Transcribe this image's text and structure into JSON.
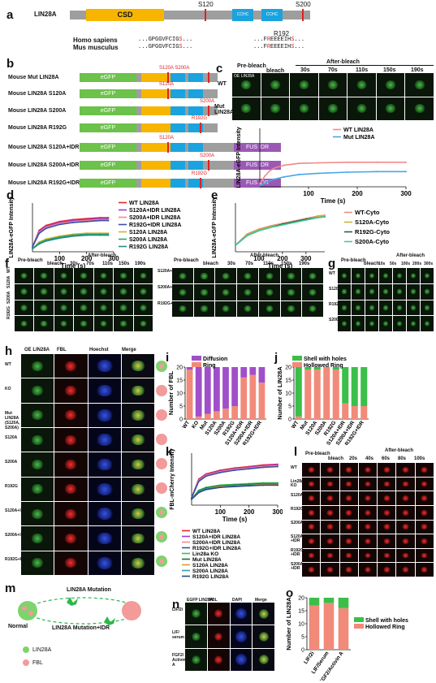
{
  "panels": {
    "a": "a",
    "b": "b",
    "c": "c",
    "d": "d",
    "e": "e",
    "f": "f",
    "g": "g",
    "h": "h",
    "i": "i",
    "j": "j",
    "k": "k",
    "l": "l",
    "m": "m",
    "n": "n",
    "o": "o"
  },
  "a": {
    "protein": "LIN28A",
    "csd": "CSD",
    "cchc": "CCHC",
    "s120": "S120",
    "s200": "S200",
    "r192": "R192",
    "homo": "Homo sapiens",
    "mus": "Mus musculus",
    "seq1_pre": "...GPGGVFCIG",
    "seq1_s": "S",
    "seq1_post": "...",
    "seq2_pre": "...GPGGVFCIG",
    "seq2_s": "S",
    "seq2_post": "...",
    "seq3_pre": "...F",
    "seq3_r": "R",
    "seq3_post": "EEEEIH",
    "seq3_s": "S",
    "seq3_end": "...",
    "seq4_pre": "...F",
    "seq4_r": "R",
    "seq4_post": "EEEEIH",
    "seq4_s": "S",
    "seq4_end": "..."
  },
  "b": {
    "egfp": "eGFP",
    "fusidr": "FUS IDR",
    "rows": [
      {
        "name": "Mouse Mut LIN28A",
        "mark": "S120A S200A"
      },
      {
        "name": "Mouse LIN28A S120A",
        "mark": "S120A"
      },
      {
        "name": "Mouse LIN28A S200A",
        "mark": "S200A"
      },
      {
        "name": "Mouse LIN28A R192G",
        "mark": "R192G"
      },
      {
        "name": "Mouse LIN28A S120A+IDR",
        "mark": "S120A"
      },
      {
        "name": "Mouse LIN28A S200A+IDR",
        "mark": "S200A"
      },
      {
        "name": "Mouse LIN28A R192G+IDR",
        "mark": "R192G"
      }
    ]
  },
  "c": {
    "prebleach": "Pre-bleach",
    "bleach": "bleach",
    "afterbleach": "After-bleach",
    "times": [
      "30s",
      "70s",
      "110s",
      "150s",
      "190s"
    ],
    "row1": "WT",
    "row2": "Mut LIN28A",
    "oe": "OE LIN28A",
    "ylabel": "LIN28A-eGFP Intensity",
    "xlabel": "Time (s)",
    "legend": [
      "WT LIN28A",
      "Mut LIN28A"
    ]
  },
  "d": {
    "ylabel": "LIN28A-eGFP Intensity",
    "xlabel": "Time (s)",
    "legend": [
      "WT LIN28A",
      "S120A+IDR LIN28A",
      "S200A+IDR LIN28A",
      "R192G+IDR LIN28A",
      "S120A LIN28A",
      "S200A LIN28A",
      "R192G LIN28A"
    ]
  },
  "e": {
    "ylabel": "LIN28A-eGFP Intensity",
    "xlabel": "Time (s)",
    "legend": [
      "WT-Cyto",
      "S120A-Cyto",
      "R192G-Cyto",
      "S200A-Cyto"
    ]
  },
  "f": {
    "prebleach": "Pre-bleach",
    "bleach": "bleach",
    "afterbleach": "After-bleach",
    "times": [
      "30s",
      "70s",
      "110s",
      "150s",
      "190s"
    ],
    "rowsL": [
      "WT",
      "S120A",
      "S200A",
      "R192G"
    ],
    "rowsR": [
      "S120A+IDR",
      "S200A+IDR",
      "R192G+IDR"
    ]
  },
  "g": {
    "prebleach": "Pre-bleach",
    "bleach": "bleach",
    "afterbleach": "After-bleach",
    "times": [
      "10s",
      "50s",
      "100s",
      "200s",
      "300s"
    ],
    "rows": [
      "WT",
      "S120A",
      "R192G",
      "S200A"
    ]
  },
  "h": {
    "cols": [
      "OE LIN28A",
      "FBL",
      "Hoechst",
      "Merge"
    ],
    "rows": [
      "WT",
      "KO",
      "Mut LIN28A (S120A, S200A)",
      "S120A",
      "S200A",
      "R192G",
      "S120A+IDR",
      "S200A+IDR",
      "R192G+IDR"
    ]
  },
  "i": {
    "ylabel": "Number of FBL",
    "legend": [
      "Diffusion",
      "Ring"
    ]
  },
  "j": {
    "ylabel": "Number of LIN28A",
    "legend": [
      "Shell with holes",
      "Hollowed Ring"
    ]
  },
  "k": {
    "ylabel": "FBL-mCherry Intensity",
    "xlabel": "Time (s)",
    "legend": [
      "WT LIN28A",
      "S120A+IDR LIN28A",
      "S200A+IDR LIN28A",
      "R192G+IDR LIN28A",
      "Lin28a KO",
      "Mut LIN28A",
      "S120A LIN28A",
      "S200A LIN28A",
      "R192G LIN28A"
    ]
  },
  "l": {
    "prebleach": "Pre-bleach",
    "bleach": "bleach",
    "afterbleach": "After-bleach",
    "times": [
      "20s",
      "40s",
      "60s",
      "80s",
      "100s"
    ],
    "rows": [
      "WT",
      "Lin28a KO",
      "S120A",
      "R192G",
      "S200A",
      "S120A +IDR",
      "R192G +IDR",
      "S200A +IDR"
    ]
  },
  "m": {
    "top": "LIN28A Mutation",
    "bottom": "LIN28A Mutation+IDR",
    "normal": "Normal",
    "leg1": "LIN28A",
    "leg2": "FBL"
  },
  "n": {
    "cols": [
      "EGFP LIN28A",
      "FBL",
      "DAPI",
      "Merge"
    ],
    "rows": [
      "LIF/2i",
      "LIF/ serum",
      "FGF2/ Activin A"
    ]
  },
  "o": {
    "ylabel": "Number of LIN28A",
    "legend": [
      "Shell with holes",
      "Hollowed Ring"
    ]
  },
  "chart_data": [
    {
      "type": "line",
      "panel": "c",
      "xlabel": "Time (s)",
      "ylabel": "LIN28A-eGFP Intensity",
      "xticks": [
        100,
        200,
        300
      ],
      "xlim": [
        0,
        300
      ],
      "ylim": [
        0,
        1.0
      ],
      "series": [
        {
          "name": "WT LIN28A",
          "color": "#f28a8a",
          "x": [
            0,
            10,
            20,
            30,
            50,
            80,
            120,
            180,
            240,
            300
          ],
          "y": [
            0.05,
            0.18,
            0.27,
            0.32,
            0.37,
            0.4,
            0.41,
            0.42,
            0.42,
            0.42
          ]
        },
        {
          "name": "Mut LIN28A",
          "color": "#4aa6e8",
          "x": [
            0,
            10,
            20,
            30,
            50,
            80,
            120,
            180,
            240,
            300
          ],
          "y": [
            0.02,
            0.06,
            0.1,
            0.13,
            0.17,
            0.21,
            0.23,
            0.25,
            0.26,
            0.26
          ]
        }
      ]
    },
    {
      "type": "line",
      "panel": "d",
      "xlabel": "Time (s)",
      "ylabel": "LIN28A-eGFP Intensity",
      "xticks": [
        100,
        200,
        300
      ],
      "xlim": [
        0,
        300
      ],
      "ylim": [
        0,
        0.5
      ],
      "series": [
        {
          "name": "WT LIN28A",
          "color": "#e8232a",
          "x": [
            0,
            25,
            50,
            100,
            150,
            200,
            250,
            280
          ],
          "y": [
            0.05,
            0.22,
            0.27,
            0.31,
            0.33,
            0.34,
            0.35,
            0.35
          ]
        },
        {
          "name": "S120A+IDR LIN28A",
          "color": "#9b3bd6",
          "x": [
            0,
            25,
            50,
            100,
            150,
            200,
            250,
            280
          ],
          "y": [
            0.05,
            0.21,
            0.26,
            0.3,
            0.32,
            0.33,
            0.34,
            0.34
          ]
        },
        {
          "name": "S200A+IDR LIN28A",
          "color": "#f28a8a",
          "x": [
            0,
            25,
            50,
            100,
            150,
            200,
            250,
            280
          ],
          "y": [
            0.05,
            0.2,
            0.25,
            0.29,
            0.31,
            0.32,
            0.33,
            0.33
          ]
        },
        {
          "name": "R192G+IDR LIN28A",
          "color": "#3a4fa8",
          "x": [
            0,
            25,
            50,
            100,
            150,
            200,
            250,
            280
          ],
          "y": [
            0.05,
            0.19,
            0.24,
            0.28,
            0.3,
            0.31,
            0.32,
            0.32
          ]
        },
        {
          "name": "S120A LIN28A",
          "color": "#c9b52a",
          "x": [
            0,
            25,
            50,
            100,
            150,
            200,
            250,
            280
          ],
          "y": [
            0.03,
            0.1,
            0.13,
            0.16,
            0.18,
            0.19,
            0.19,
            0.19
          ]
        },
        {
          "name": "S200A LIN28A",
          "color": "#2aa36b",
          "x": [
            0,
            25,
            50,
            100,
            150,
            200,
            250,
            280
          ],
          "y": [
            0.03,
            0.09,
            0.12,
            0.15,
            0.17,
            0.18,
            0.18,
            0.18
          ]
        },
        {
          "name": "R192G LIN28A",
          "color": "#2a8a8a",
          "x": [
            0,
            25,
            50,
            100,
            150,
            200,
            250,
            280
          ],
          "y": [
            0.03,
            0.08,
            0.11,
            0.14,
            0.16,
            0.17,
            0.17,
            0.17
          ]
        }
      ]
    },
    {
      "type": "line",
      "panel": "e",
      "xlabel": "Time (s)",
      "ylabel": "LIN28A-eGFP Intensity",
      "xticks": [
        100,
        200,
        300
      ],
      "xlim": [
        0,
        380
      ],
      "ylim": [
        0,
        0.6
      ],
      "series": [
        {
          "name": "WT-Cyto",
          "color": "#f28a8a",
          "x": [
            0,
            50,
            100,
            150,
            200,
            250,
            300,
            350,
            380
          ],
          "y": [
            0.08,
            0.22,
            0.28,
            0.32,
            0.35,
            0.38,
            0.41,
            0.44,
            0.45
          ]
        },
        {
          "name": "S120A-Cyto",
          "color": "#c9b52a",
          "x": [
            0,
            50,
            100,
            150,
            200,
            250,
            300,
            350,
            380
          ],
          "y": [
            0.08,
            0.21,
            0.27,
            0.31,
            0.34,
            0.37,
            0.4,
            0.43,
            0.44
          ]
        },
        {
          "name": "R192G-Cyto",
          "color": "#1f6b3a",
          "x": [
            0,
            50,
            100,
            150,
            200,
            250,
            300,
            350,
            380
          ],
          "y": [
            0.08,
            0.2,
            0.26,
            0.3,
            0.34,
            0.37,
            0.4,
            0.42,
            0.43
          ]
        },
        {
          "name": "S200A-Cyto",
          "color": "#3ec9a0",
          "x": [
            0,
            50,
            100,
            150,
            200,
            250,
            300,
            350,
            380
          ],
          "y": [
            0.08,
            0.2,
            0.26,
            0.3,
            0.33,
            0.36,
            0.39,
            0.42,
            0.43
          ]
        }
      ]
    },
    {
      "type": "bar",
      "panel": "i",
      "stacked": true,
      "ylabel": "Number of FBL",
      "ylim": [
        0,
        20
      ],
      "yticks": [
        0,
        5,
        10,
        15,
        20
      ],
      "categories": [
        "WT",
        "KO",
        "Mut",
        "S120A",
        "S200A",
        "R192G",
        "S120A+IDR",
        "S200A+IDR",
        "R192G+IDR"
      ],
      "series": [
        {
          "name": "Ring",
          "color": "#f28a7a",
          "values": [
            19,
            1,
            2,
            3,
            4,
            5,
            16,
            17,
            14
          ]
        },
        {
          "name": "Diffusion",
          "color": "#a04fc9",
          "values": [
            1,
            19,
            18,
            17,
            16,
            15,
            4,
            3,
            6
          ]
        }
      ]
    },
    {
      "type": "bar",
      "panel": "j",
      "stacked": true,
      "ylabel": "Number of LIN28A",
      "ylim": [
        0,
        20
      ],
      "yticks": [
        0,
        5,
        10,
        15,
        20
      ],
      "categories": [
        "WT",
        "Mut",
        "S120A",
        "S200A",
        "R192G",
        "S120A+IDR",
        "S200A+IDR",
        "R192G+IDR"
      ],
      "series": [
        {
          "name": "Hollowed Ring",
          "color": "#f28a7a",
          "values": [
            1,
            19,
            19,
            20,
            19,
            6,
            5,
            5
          ]
        },
        {
          "name": "Shell with holes",
          "color": "#3bbf4a",
          "values": [
            19,
            1,
            1,
            0,
            1,
            14,
            15,
            15
          ]
        }
      ]
    },
    {
      "type": "line",
      "panel": "k",
      "xlabel": "Time (s)",
      "ylabel": "FBL-mCherry Intensity",
      "xticks": [
        100,
        200,
        300
      ],
      "xlim": [
        0,
        300
      ],
      "ylim": [
        0,
        0.7
      ],
      "series": [
        {
          "name": "WT LIN28A",
          "color": "#e8232a",
          "x": [
            0,
            25,
            50,
            100,
            150,
            200,
            250,
            300
          ],
          "y": [
            0.1,
            0.35,
            0.42,
            0.47,
            0.5,
            0.52,
            0.54,
            0.55
          ]
        },
        {
          "name": "S120A+IDR LIN28A",
          "color": "#9b3bd6",
          "x": [
            0,
            25,
            50,
            100,
            150,
            200,
            250,
            300
          ],
          "y": [
            0.1,
            0.34,
            0.41,
            0.46,
            0.49,
            0.51,
            0.53,
            0.54
          ]
        },
        {
          "name": "S200A+IDR LIN28A",
          "color": "#f28a8a",
          "x": [
            0,
            25,
            50,
            100,
            150,
            200,
            250,
            300
          ],
          "y": [
            0.1,
            0.33,
            0.4,
            0.45,
            0.48,
            0.5,
            0.52,
            0.53
          ]
        },
        {
          "name": "R192G+IDR LIN28A",
          "color": "#3a4fa8",
          "x": [
            0,
            25,
            50,
            100,
            150,
            200,
            250,
            300
          ],
          "y": [
            0.1,
            0.32,
            0.39,
            0.44,
            0.47,
            0.49,
            0.51,
            0.52
          ]
        },
        {
          "name": "Lin28a KO",
          "color": "#3bbf4a",
          "x": [
            0,
            25,
            50,
            100,
            150,
            200,
            250,
            300
          ],
          "y": [
            0.08,
            0.2,
            0.24,
            0.27,
            0.28,
            0.29,
            0.3,
            0.3
          ]
        },
        {
          "name": "Mut LIN28A",
          "color": "#1f6b3a",
          "x": [
            0,
            25,
            50,
            100,
            150,
            200,
            250,
            300
          ],
          "y": [
            0.08,
            0.19,
            0.23,
            0.26,
            0.27,
            0.28,
            0.29,
            0.29
          ]
        },
        {
          "name": "S120A LIN28A",
          "color": "#e39a2a",
          "x": [
            0,
            25,
            50,
            100,
            150,
            200,
            250,
            300
          ],
          "y": [
            0.08,
            0.18,
            0.22,
            0.25,
            0.26,
            0.27,
            0.28,
            0.28
          ]
        },
        {
          "name": "S200A LIN28A",
          "color": "#2aa3a3",
          "x": [
            0,
            25,
            50,
            100,
            150,
            200,
            250,
            300
          ],
          "y": [
            0.08,
            0.18,
            0.22,
            0.24,
            0.26,
            0.27,
            0.27,
            0.27
          ]
        },
        {
          "name": "R192G LIN28A",
          "color": "#2a4a8a",
          "x": [
            0,
            25,
            50,
            100,
            150,
            200,
            250,
            300
          ],
          "y": [
            0.08,
            0.17,
            0.21,
            0.24,
            0.25,
            0.26,
            0.27,
            0.27
          ]
        }
      ]
    },
    {
      "type": "bar",
      "panel": "o",
      "stacked": true,
      "ylabel": "Number of LIN28A",
      "ylim": [
        0,
        20
      ],
      "yticks": [
        0,
        5,
        10,
        15,
        20
      ],
      "categories": [
        "LIF/2i",
        "LIF/Serum",
        "FGF2/Activin A"
      ],
      "series": [
        {
          "name": "Hollowed Ring",
          "color": "#f28a7a",
          "values": [
            17,
            18,
            16
          ]
        },
        {
          "name": "Shell with holes",
          "color": "#3bbf4a",
          "values": [
            3,
            2,
            4
          ]
        }
      ]
    }
  ]
}
